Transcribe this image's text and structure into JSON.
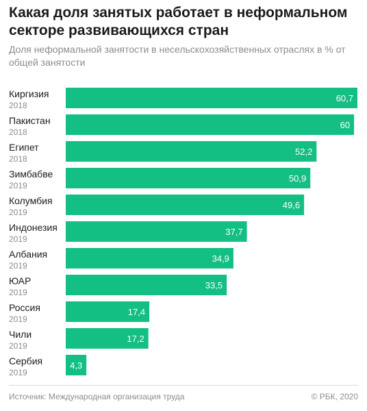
{
  "chart_data": {
    "type": "bar",
    "orientation": "horizontal",
    "title": "Какая доля занятых работает в неформальном секторе развивающихся стран",
    "subtitle": "Доля неформальной занятости в несельскохозяйственных отраслях в % от общей занятости",
    "categories": [
      "Киргизия",
      "Пакистан",
      "Египет",
      "Зимбабве",
      "Колумбия",
      "Индонезия",
      "Албания",
      "ЮАР",
      "Россия",
      "Чили",
      "Сербия"
    ],
    "years": [
      "2018",
      "2018",
      "2018",
      "2019",
      "2019",
      "2019",
      "2019",
      "2019",
      "2019",
      "2019",
      "2019"
    ],
    "values": [
      60.7,
      60,
      52.2,
      50.9,
      49.6,
      37.7,
      34.9,
      33.5,
      17.4,
      17.2,
      4.3
    ],
    "value_labels": [
      "60,7",
      "60",
      "52,2",
      "50,9",
      "49,6",
      "37,7",
      "34,9",
      "33,5",
      "17,4",
      "17,2",
      "4,3"
    ],
    "xlim": [
      0,
      60.7
    ],
    "bar_color": "#14bf84",
    "grid": false,
    "legend": "none"
  },
  "footer": {
    "source": "Источник: Международная организация труда",
    "copyright": "© РБК, 2020"
  }
}
